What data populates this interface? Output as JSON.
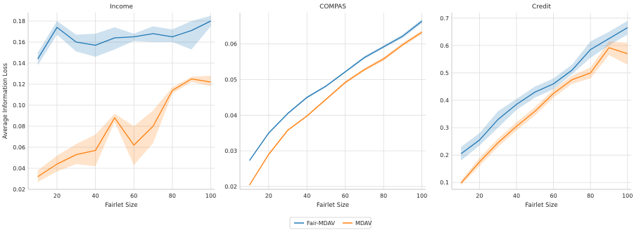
{
  "colors": {
    "fair_mdav": "#1f77b4",
    "mdav": "#ff7f0e",
    "grid": "#dddddd",
    "axis": "#c8c8c8"
  },
  "chart_data": [
    {
      "type": "line",
      "title": "Income",
      "xlabel": "Fairlet Size",
      "ylabel": "Average Information Loss",
      "xlim": [
        5,
        102
      ],
      "ylim": [
        0.02,
        0.188
      ],
      "xticks": [
        20,
        40,
        60,
        80,
        100
      ],
      "yticks": [
        0.02,
        0.04,
        0.06,
        0.08,
        0.1,
        0.12,
        0.14,
        0.16,
        0.18
      ],
      "ytick_labels": [
        "0.02",
        "0.04",
        "0.06",
        "0.08",
        "0.10",
        "0.12",
        "0.14",
        "0.16",
        "0.18"
      ],
      "grid": true,
      "x": [
        10,
        20,
        30,
        40,
        50,
        60,
        70,
        80,
        90,
        100
      ],
      "series": [
        {
          "name": "Fair-MDAV",
          "values": [
            0.144,
            0.174,
            0.16,
            0.157,
            0.164,
            0.165,
            0.168,
            0.165,
            0.171,
            0.18
          ],
          "lower": [
            0.138,
            0.167,
            0.151,
            0.146,
            0.153,
            0.161,
            0.16,
            0.16,
            0.153,
            0.175
          ],
          "upper": [
            0.15,
            0.18,
            0.167,
            0.168,
            0.174,
            0.168,
            0.175,
            0.172,
            0.18,
            0.185
          ]
        },
        {
          "name": "MDAV",
          "values": [
            0.032,
            0.044,
            0.053,
            0.057,
            0.088,
            0.062,
            0.08,
            0.114,
            0.125,
            0.122
          ],
          "lower": [
            0.027,
            0.037,
            0.044,
            0.042,
            0.084,
            0.043,
            0.064,
            0.111,
            0.122,
            0.118
          ],
          "upper": [
            0.038,
            0.052,
            0.063,
            0.072,
            0.092,
            0.08,
            0.095,
            0.117,
            0.127,
            0.128
          ]
        }
      ]
    },
    {
      "type": "line",
      "title": "COMPAS",
      "xlabel": "Fairlet Size",
      "ylabel": "",
      "xlim": [
        5,
        102
      ],
      "ylim": [
        0.0192,
        0.0688
      ],
      "xticks": [
        20,
        40,
        60,
        80,
        100
      ],
      "yticks": [
        0.02,
        0.03,
        0.04,
        0.05,
        0.06
      ],
      "ytick_labels": [
        "0.02",
        "0.03",
        "0.04",
        "0.05",
        "0.06"
      ],
      "grid": true,
      "x": [
        10,
        20,
        30,
        40,
        50,
        60,
        70,
        80,
        90,
        100
      ],
      "series": [
        {
          "name": "Fair-MDAV",
          "values": [
            0.0273,
            0.035,
            0.0405,
            0.045,
            0.0482,
            0.0522,
            0.0562,
            0.0592,
            0.0622,
            0.0664
          ],
          "lower": [
            0.0271,
            0.0347,
            0.0402,
            0.0447,
            0.0479,
            0.0519,
            0.0558,
            0.0588,
            0.0617,
            0.0658
          ],
          "upper": [
            0.0275,
            0.0353,
            0.0408,
            0.0453,
            0.0485,
            0.0525,
            0.0566,
            0.0596,
            0.0627,
            0.0669
          ]
        },
        {
          "name": "MDAV",
          "values": [
            0.0204,
            0.029,
            0.0358,
            0.0398,
            0.0445,
            0.0492,
            0.0528,
            0.0558,
            0.0598,
            0.0633
          ],
          "lower": [
            0.0202,
            0.0287,
            0.0355,
            0.0395,
            0.0442,
            0.0488,
            0.0524,
            0.0553,
            0.0593,
            0.0628
          ],
          "upper": [
            0.0206,
            0.0293,
            0.0361,
            0.0401,
            0.0448,
            0.0496,
            0.0532,
            0.0563,
            0.0603,
            0.0638
          ]
        }
      ]
    },
    {
      "type": "line",
      "title": "Credit",
      "xlabel": "Fairlet Size",
      "ylabel": "",
      "xlim": [
        5,
        102
      ],
      "ylim": [
        0.075,
        0.72
      ],
      "xticks": [
        20,
        40,
        60,
        80,
        100
      ],
      "yticks": [
        0.1,
        0.2,
        0.3,
        0.4,
        0.5,
        0.6,
        0.7
      ],
      "ytick_labels": [
        "0.1",
        "0.2",
        "0.3",
        "0.4",
        "0.5",
        "0.6",
        "0.7"
      ],
      "grid": true,
      "x": [
        10,
        20,
        30,
        40,
        50,
        60,
        70,
        80,
        90,
        100
      ],
      "series": [
        {
          "name": "Fair-MDAV",
          "values": [
            0.205,
            0.255,
            0.33,
            0.385,
            0.43,
            0.46,
            0.51,
            0.585,
            0.625,
            0.665
          ],
          "lower": [
            0.18,
            0.235,
            0.3,
            0.365,
            0.41,
            0.44,
            0.495,
            0.555,
            0.6,
            0.64
          ],
          "upper": [
            0.23,
            0.28,
            0.36,
            0.405,
            0.45,
            0.48,
            0.53,
            0.615,
            0.65,
            0.69
          ]
        },
        {
          "name": "MDAV",
          "values": [
            0.098,
            0.175,
            0.245,
            0.305,
            0.36,
            0.425,
            0.475,
            0.5,
            0.592,
            0.57
          ],
          "lower": [
            0.09,
            0.16,
            0.23,
            0.29,
            0.345,
            0.41,
            0.46,
            0.48,
            0.565,
            0.53
          ],
          "upper": [
            0.106,
            0.19,
            0.26,
            0.32,
            0.375,
            0.44,
            0.49,
            0.52,
            0.615,
            0.61
          ]
        }
      ]
    }
  ],
  "legend": {
    "placement": "bottom-center",
    "items": [
      "Fair-MDAV",
      "MDAV"
    ]
  }
}
